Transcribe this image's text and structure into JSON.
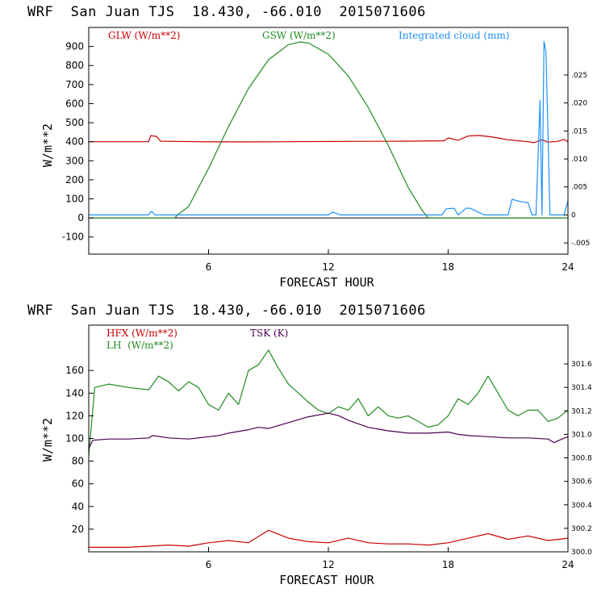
{
  "chart_data": [
    {
      "type": "line",
      "title": "WRF  San Juan TJS  18.430, -66.010  2015071606",
      "xlabel": "FORECAST HOUR",
      "ylabel": "W/m**2",
      "xlim": [
        0,
        24
      ],
      "ylim": [
        -190,
        1000
      ],
      "y2lim": [
        -0.007,
        0.0335
      ],
      "x_ticks": [
        "6",
        "12",
        "18",
        "24"
      ],
      "y_ticks": [
        "-100",
        "0",
        "100",
        "200",
        "300",
        "400",
        "500",
        "600",
        "700",
        "800",
        "900"
      ],
      "y2_ticks": [
        ".025",
        ".020",
        ".015",
        ".010",
        ".005",
        "0",
        "-.005"
      ],
      "legend": [
        "GLW (W/m**2)",
        "GSW (W/m**2)",
        "Integrated cloud (mm)"
      ],
      "colors": {
        "glw": "#cc0000",
        "gsw": "#228b22",
        "cloud": "#1e90ff",
        "zero": "#000000"
      },
      "series": [
        {
          "name": "GLW (W/m**2)",
          "axis": "left",
          "x": [
            0,
            3.0,
            3.1,
            3.4,
            3.6,
            5.5,
            8,
            10,
            12,
            14,
            16,
            17.8,
            18.0,
            18.5,
            19.0,
            19.5,
            20.0,
            20.5,
            21.0,
            21.5,
            22.0,
            22.3,
            22.7,
            23.0,
            23.5,
            23.8,
            24
          ],
          "values": [
            400,
            400,
            432,
            428,
            403,
            400,
            399,
            400,
            401,
            402,
            403,
            405,
            420,
            408,
            430,
            433,
            428,
            420,
            410,
            405,
            400,
            395,
            410,
            398,
            402,
            412,
            400
          ]
        },
        {
          "name": "GSW (W/m**2)",
          "axis": "left",
          "x": [
            0,
            4.3,
            4.5,
            5,
            6,
            7,
            8,
            9,
            10,
            10.6,
            11,
            12,
            13,
            14,
            15,
            16,
            16.7,
            17.0,
            24
          ],
          "values": [
            0,
            0,
            20,
            60,
            260,
            480,
            680,
            830,
            910,
            924,
            918,
            860,
            745,
            580,
            380,
            160,
            40,
            0,
            0
          ]
        },
        {
          "name": "Integrated cloud (mm)",
          "axis": "right",
          "x": [
            0,
            3.0,
            3.1,
            3.2,
            3.3,
            12.0,
            12.2,
            12.4,
            12.6,
            17.7,
            17.9,
            18.3,
            18.5,
            18.9,
            19.1,
            19.8,
            20.0,
            20.4,
            21.0,
            21.2,
            21.6,
            22.0,
            22.2,
            22.4,
            22.6,
            22.7,
            22.8,
            22.9,
            23.1,
            23.3,
            23.8,
            24
          ],
          "values": [
            0,
            0,
            0.0006,
            0.0005,
            0,
            0,
            0.0005,
            0.0003,
            0,
            0,
            0.0011,
            0.0012,
            0,
            0.0012,
            0.0012,
            0,
            0,
            0,
            0,
            0.0028,
            0.0024,
            0.0022,
            0,
            0,
            0.0205,
            0,
            0.031,
            0.029,
            0,
            0,
            0,
            0.0025
          ]
        }
      ]
    },
    {
      "type": "line",
      "title": "WRF  San Juan TJS  18.430, -66.010  2015071606",
      "xlabel": "FORECAST HOUR",
      "ylabel": "W/m**2",
      "xlim": [
        0,
        24
      ],
      "ylim": [
        0,
        200
      ],
      "y2lim": [
        300.0,
        301.93
      ],
      "x_ticks": [
        "6",
        "12",
        "18",
        "24"
      ],
      "y_ticks": [
        "20",
        "40",
        "60",
        "80",
        "100",
        "120",
        "140",
        "160"
      ],
      "y2_ticks": [
        "301.6",
        "301.4",
        "301.2",
        "301.0",
        "300.8",
        "300.6",
        "300.4",
        "300.2",
        "300.0"
      ],
      "legend": [
        "HFX (W/m**2)",
        "LH  (W/m**2)",
        "TSK (K)"
      ],
      "colors": {
        "hfx": "#cc0000",
        "lh": "#228b22",
        "tsk": "#4b0051"
      },
      "series": [
        {
          "name": "HFX (W/m**2)",
          "axis": "left",
          "x": [
            0,
            2,
            3,
            4,
            5,
            6,
            7,
            8,
            9,
            10,
            11,
            12,
            13,
            14,
            15,
            16,
            17,
            18,
            19,
            20,
            21,
            22,
            23,
            24
          ],
          "values": [
            4,
            4,
            5,
            6,
            5,
            8,
            10,
            8,
            19,
            12,
            9,
            8,
            12,
            8,
            7,
            7,
            6,
            8,
            12,
            16,
            11,
            14,
            10,
            12
          ]
        },
        {
          "name": "LH  (W/m**2)",
          "axis": "left",
          "x": [
            0,
            0.3,
            1,
            2,
            3,
            3.5,
            4,
            4.5,
            5,
            5.5,
            6,
            6.5,
            7,
            7.5,
            8,
            8.5,
            9,
            9.5,
            10,
            10.5,
            11,
            11.5,
            12,
            12.5,
            13,
            13.5,
            14,
            14.5,
            15,
            15.5,
            16,
            16.5,
            17,
            17.5,
            18,
            18.5,
            19,
            19.5,
            20,
            20.5,
            21,
            21.5,
            22,
            22.5,
            23,
            23.5,
            24
          ],
          "values": [
            85,
            145,
            148,
            145,
            143,
            155,
            150,
            142,
            150,
            145,
            130,
            125,
            140,
            130,
            160,
            165,
            178,
            162,
            148,
            140,
            132,
            125,
            122,
            128,
            125,
            135,
            120,
            128,
            120,
            118,
            120,
            115,
            110,
            112,
            120,
            135,
            130,
            140,
            155,
            140,
            125,
            120,
            125,
            125,
            115,
            118,
            125
          ]
        },
        {
          "name": "TSK (K)",
          "axis": "right",
          "x": [
            0,
            0.2,
            1,
            2,
            3,
            3.2,
            4,
            5,
            6,
            6.5,
            7,
            8,
            8.5,
            9,
            10,
            11,
            12,
            12.5,
            13,
            14,
            15,
            16,
            17,
            18,
            18.5,
            19,
            20,
            21,
            22,
            23,
            23.3,
            23.7,
            24
          ],
          "values": [
            300.88,
            300.95,
            300.96,
            300.96,
            300.97,
            300.99,
            300.97,
            300.96,
            300.98,
            300.99,
            301.01,
            301.04,
            301.06,
            301.05,
            301.1,
            301.15,
            301.18,
            301.16,
            301.12,
            301.06,
            301.03,
            301.01,
            301.01,
            301.02,
            301.0,
            300.99,
            300.98,
            300.97,
            300.97,
            300.96,
            300.93,
            300.96,
            300.98
          ]
        }
      ]
    }
  ]
}
